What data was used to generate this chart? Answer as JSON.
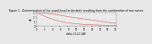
{
  "title": "Figure 1 - Determination of the sound level in decibels resulting from the combination of two noises",
  "title_fontsize": 2.2,
  "xlabel": "delta L1-L2 (dB)",
  "ylabel": "dB",
  "xlabel_fontsize": 2.0,
  "ylabel_fontsize": 2.0,
  "xlim": [
    0,
    20
  ],
  "ylim": [
    0,
    3
  ],
  "xtick_values": [
    0,
    2,
    4,
    6,
    8,
    10,
    12,
    14,
    16,
    18,
    20
  ],
  "ytick_values": [
    0,
    1,
    2,
    3
  ],
  "line1_x": [
    0,
    1,
    2,
    3,
    4,
    5,
    6,
    7,
    8,
    9,
    10,
    11,
    12,
    13,
    14,
    15,
    16,
    17,
    18,
    19,
    20
  ],
  "line1_y": [
    3.01,
    2.54,
    2.12,
    1.76,
    1.46,
    1.19,
    0.97,
    0.79,
    0.64,
    0.51,
    0.41,
    0.33,
    0.27,
    0.21,
    0.17,
    0.14,
    0.11,
    0.09,
    0.07,
    0.06,
    0.04
  ],
  "line2_x": [
    0,
    2,
    4,
    6,
    8,
    10,
    12,
    14,
    16,
    18,
    20
  ],
  "line2_y": [
    3.0,
    2.8,
    2.6,
    2.3,
    2.0,
    1.75,
    1.5,
    1.25,
    1.0,
    0.75,
    0.5
  ],
  "line_color": "#d06060",
  "background_color": "#e8e8e8",
  "plot_bg_color": "#e8e8e8",
  "grid_color": "#ffffff",
  "tick_fontsize": 1.8
}
